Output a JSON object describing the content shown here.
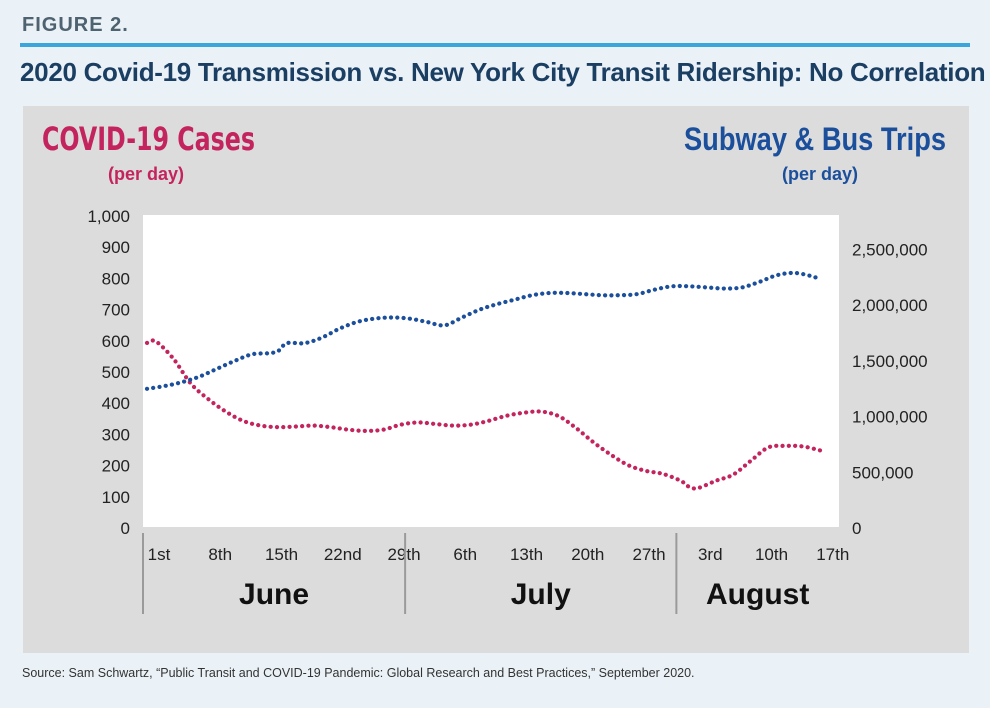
{
  "figure_label": "FIGURE 2.",
  "title": "2020 Covid-19 Transmission vs. New York City Transit Ridership: No Correlation",
  "source": "Source: Sam Schwartz, “Public Transit and COVID-19 Pandemic: Global Research and Best Practices,” September 2020.",
  "colors": {
    "cases": "#c4245e",
    "trips": "#1b4f9c",
    "panel": "#dcdcdc",
    "plot": "#ffffff",
    "accent": "#3aa6dc"
  },
  "chart_data": {
    "type": "line",
    "left_axis": {
      "title": "COVID-19 Cases",
      "subtitle": "(per day)",
      "ticks": [
        0,
        100,
        200,
        300,
        400,
        500,
        600,
        700,
        800,
        900,
        1000
      ],
      "tick_labels": [
        "0",
        "100",
        "200",
        "300",
        "400",
        "500",
        "600",
        "700",
        "800",
        "900",
        "1,000"
      ],
      "ylim": [
        0,
        1000
      ]
    },
    "right_axis": {
      "title": "Subway & Bus Trips",
      "subtitle": "(per day)",
      "ticks": [
        0,
        500000,
        1000000,
        1500000,
        2000000,
        2500000
      ],
      "tick_labels": [
        "0",
        "500,000",
        "1,000,000",
        "1,500,000",
        "2,000,000",
        "2,500,000"
      ],
      "ylim": [
        0,
        2800000
      ]
    },
    "x_ticks": [
      {
        "day": 1,
        "label": "1st"
      },
      {
        "day": 8,
        "label": "8th"
      },
      {
        "day": 15,
        "label": "15th"
      },
      {
        "day": 22,
        "label": "22nd"
      },
      {
        "day": 29,
        "label": "29th"
      },
      {
        "day": 36,
        "label": "6th"
      },
      {
        "day": 43,
        "label": "13th"
      },
      {
        "day": 50,
        "label": "20th"
      },
      {
        "day": 57,
        "label": "27th"
      },
      {
        "day": 64,
        "label": "3rd"
      },
      {
        "day": 71,
        "label": "10th"
      },
      {
        "day": 78,
        "label": "17th"
      }
    ],
    "months": [
      {
        "label": "June",
        "start": 1,
        "end": 30
      },
      {
        "label": "July",
        "start": 31,
        "end": 61
      },
      {
        "label": "August",
        "start": 62,
        "end": 79
      }
    ],
    "x_range": [
      1,
      79
    ],
    "legend": "none",
    "grid": false,
    "series": [
      {
        "name": "COVID-19 Cases",
        "axis": "left",
        "x": [
          1,
          2,
          4,
          6,
          8,
          10,
          12,
          14,
          16,
          18,
          20,
          22,
          24,
          26,
          28,
          30,
          32,
          34,
          36,
          38,
          40,
          42,
          44,
          46,
          48,
          50,
          52,
          54,
          56,
          58,
          60,
          62,
          63,
          64,
          66,
          68,
          70,
          72,
          74,
          76,
          78
        ],
        "values": [
          590,
          595,
          540,
          460,
          410,
          370,
          340,
          325,
          320,
          322,
          325,
          320,
          312,
          308,
          312,
          328,
          335,
          330,
          325,
          328,
          340,
          356,
          366,
          370,
          356,
          318,
          272,
          232,
          198,
          180,
          170,
          148,
          128,
          125,
          148,
          168,
          212,
          255,
          260,
          258,
          245
        ]
      },
      {
        "name": "Subway & Bus Trips",
        "axis": "right",
        "x": [
          1,
          3,
          5,
          7,
          9,
          11,
          13,
          15,
          16,
          17,
          19,
          21,
          23,
          25,
          27,
          29,
          31,
          33,
          35,
          37,
          39,
          41,
          43,
          45,
          47,
          49,
          51,
          53,
          55,
          57,
          59,
          61,
          63,
          65,
          67,
          69,
          71,
          73,
          75,
          77,
          78
        ],
        "values": [
          1240000,
          1265000,
          1300000,
          1350000,
          1420000,
          1490000,
          1550000,
          1560000,
          1580000,
          1650000,
          1650000,
          1700000,
          1780000,
          1840000,
          1870000,
          1880000,
          1870000,
          1840000,
          1810000,
          1880000,
          1950000,
          2000000,
          2040000,
          2080000,
          2100000,
          2100000,
          2090000,
          2080000,
          2080000,
          2090000,
          2130000,
          2160000,
          2160000,
          2150000,
          2140000,
          2150000,
          2200000,
          2260000,
          2280000,
          2250000,
          2220000
        ]
      }
    ]
  }
}
